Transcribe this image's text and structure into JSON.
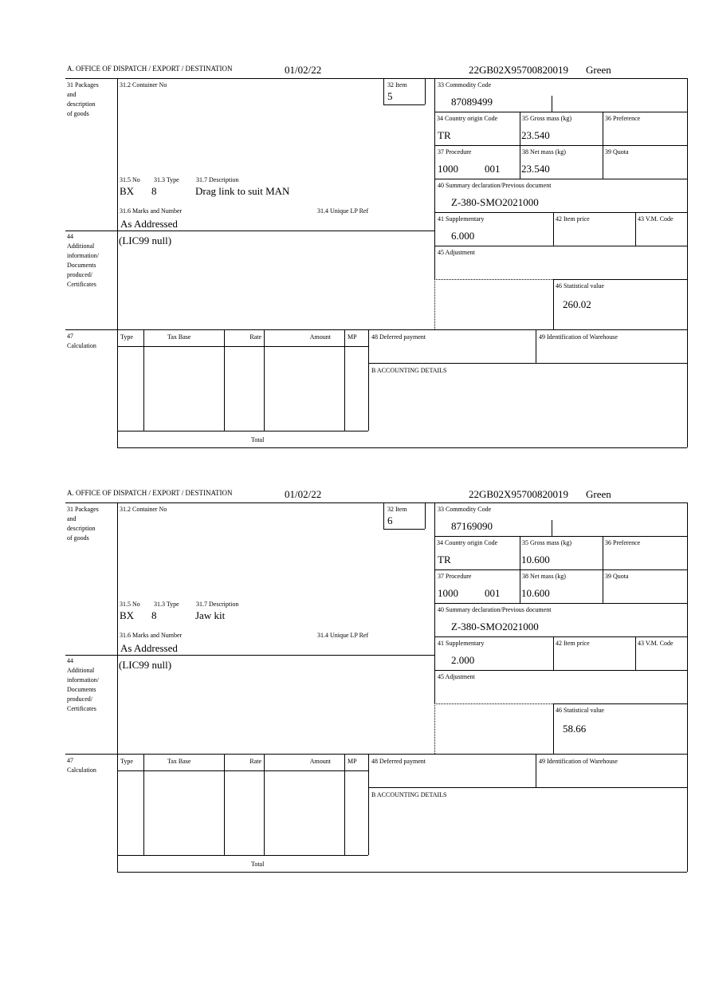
{
  "labels": {
    "office": "A. OFFICE OF DISPATCH / EXPORT / DESTINATION",
    "box31": [
      "31 Packages",
      "and",
      "description",
      "of goods"
    ],
    "container_no": "31.2 Container No",
    "item": "32 Item",
    "commodity_code": "33 Commodity Code",
    "country_origin": "34 Country origin Code",
    "gross_mass": "35 Gross mass (kg)",
    "preference": "36 Preference",
    "procedure": "37 Procedure",
    "net_mass": "38 Net mass (kg)",
    "quota": "39 Quota",
    "summary_declaration": "40 Summary declaration/Previous document",
    "supplementary": "41 Supplementary",
    "item_price": "42 Item price",
    "vm_code": "43 V.M. Code",
    "adjustment": "45 Adjustment",
    "statistical_value": "46 Statistical value",
    "no": "31.5 No",
    "type": "31.3 Type",
    "description": "31.7 Description",
    "marks": "31.6 Marks and Number",
    "unique_lp_ref": "31.4 Unique LP Ref",
    "box44": [
      "44",
      "Additional",
      "information/",
      "Documents",
      "produced/",
      "Certificates"
    ],
    "box47": [
      "47",
      "Calculation"
    ],
    "calc_headers": [
      "Type",
      "Tax Base",
      "Rate",
      "Amount",
      "MP"
    ],
    "total": "Total",
    "deferred_payment": "48 Deferred payment",
    "warehouse": "49 Identification of Warehouse",
    "accounting": "B ACCOUNTING DETAILS"
  },
  "items": [
    {
      "date": "01/02/22",
      "reference": "22GB02X95700820019",
      "route": "Green",
      "item_no": "5",
      "commodity_code": "87089499",
      "country_origin": "TR",
      "gross_mass": "23.540",
      "procedure": "1000",
      "procedure_additional": "001",
      "net_mass": "23.540",
      "summary_declaration": "Z-380-SMO2021000",
      "supplementary": "6.000",
      "statistical_value": "260.02",
      "package_kind": "BX",
      "package_count": "8",
      "description": "Drag link to suit MAN",
      "marks": "As Addressed",
      "additional_info": "(LIC99 null)"
    },
    {
      "date": "01/02/22",
      "reference": "22GB02X95700820019",
      "route": "Green",
      "item_no": "6",
      "commodity_code": "87169090",
      "country_origin": "TR",
      "gross_mass": "10.600",
      "procedure": "1000",
      "procedure_additional": "001",
      "net_mass": "10.600",
      "summary_declaration": "Z-380-SMO2021000",
      "supplementary": "2.000",
      "statistical_value": "58.66",
      "package_kind": "BX",
      "package_count": "8",
      "description": "Jaw kit",
      "marks": "As Addressed",
      "additional_info": "(LIC99 null)"
    }
  ]
}
